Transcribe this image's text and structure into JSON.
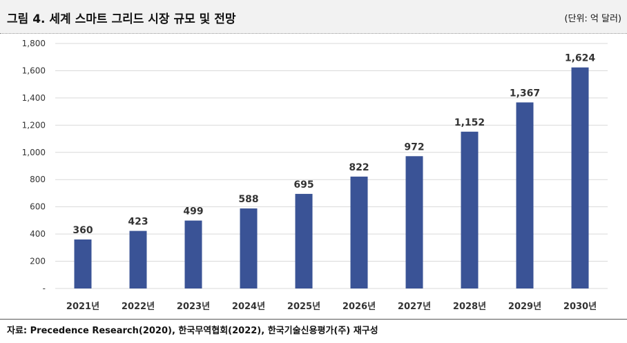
{
  "header": {
    "title": "그림 4. 세계 스마트 그리드 시장 규모 및 전망",
    "unit": "(단위: 억 달러)"
  },
  "footer": {
    "source": "자료: Precedence Research(2020), 한국무역협회(2022), 한국기술신용평가(주) 재구성"
  },
  "colors": {
    "bar": "#3a5396",
    "grid": "#d9d9d9"
  },
  "chart_data": {
    "type": "bar",
    "title": "그림 4. 세계 스마트 그리드 시장 규모 및 전망",
    "unit": "(단위: 억 달러)",
    "categories": [
      "2021년",
      "2022년",
      "2023년",
      "2024년",
      "2025년",
      "2026년",
      "2027년",
      "2028년",
      "2029년",
      "2030년"
    ],
    "values": [
      360,
      423,
      499,
      588,
      695,
      822,
      972,
      1152,
      1367,
      1624
    ],
    "value_labels": [
      "360",
      "423",
      "499",
      "588",
      "695",
      "822",
      "972",
      "1,152",
      "1,367",
      "1,624"
    ],
    "yticks": [
      0,
      200,
      400,
      600,
      800,
      1000,
      1200,
      1400,
      1600,
      1800
    ],
    "ytick_labels": [
      "-",
      "200",
      "400",
      "600",
      "800",
      "1,000",
      "1,200",
      "1,400",
      "1,600",
      "1,800"
    ],
    "ylim": [
      0,
      1800
    ],
    "grid": true,
    "legend": "none"
  }
}
